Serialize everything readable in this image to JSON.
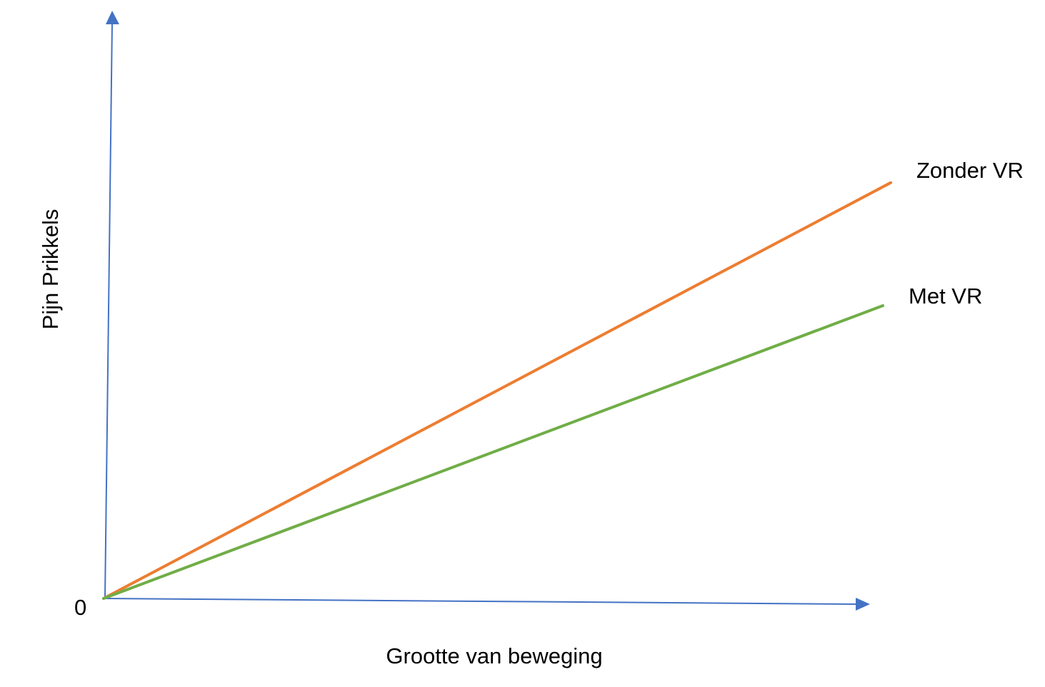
{
  "chart_data": {
    "type": "line",
    "xlabel": "Grootte van beweging",
    "ylabel": "Pijn Prikkels",
    "origin_label": "0",
    "grid": false,
    "series": [
      {
        "name": "Zonder VR",
        "color": "#ED7D31",
        "x": [
          0,
          1
        ],
        "y": [
          0,
          0.71
        ]
      },
      {
        "name": "Met VR",
        "color": "#70AD47",
        "x": [
          0,
          1
        ],
        "y": [
          0,
          0.5
        ]
      }
    ]
  },
  "colors": {
    "axis": "#4472C4"
  }
}
